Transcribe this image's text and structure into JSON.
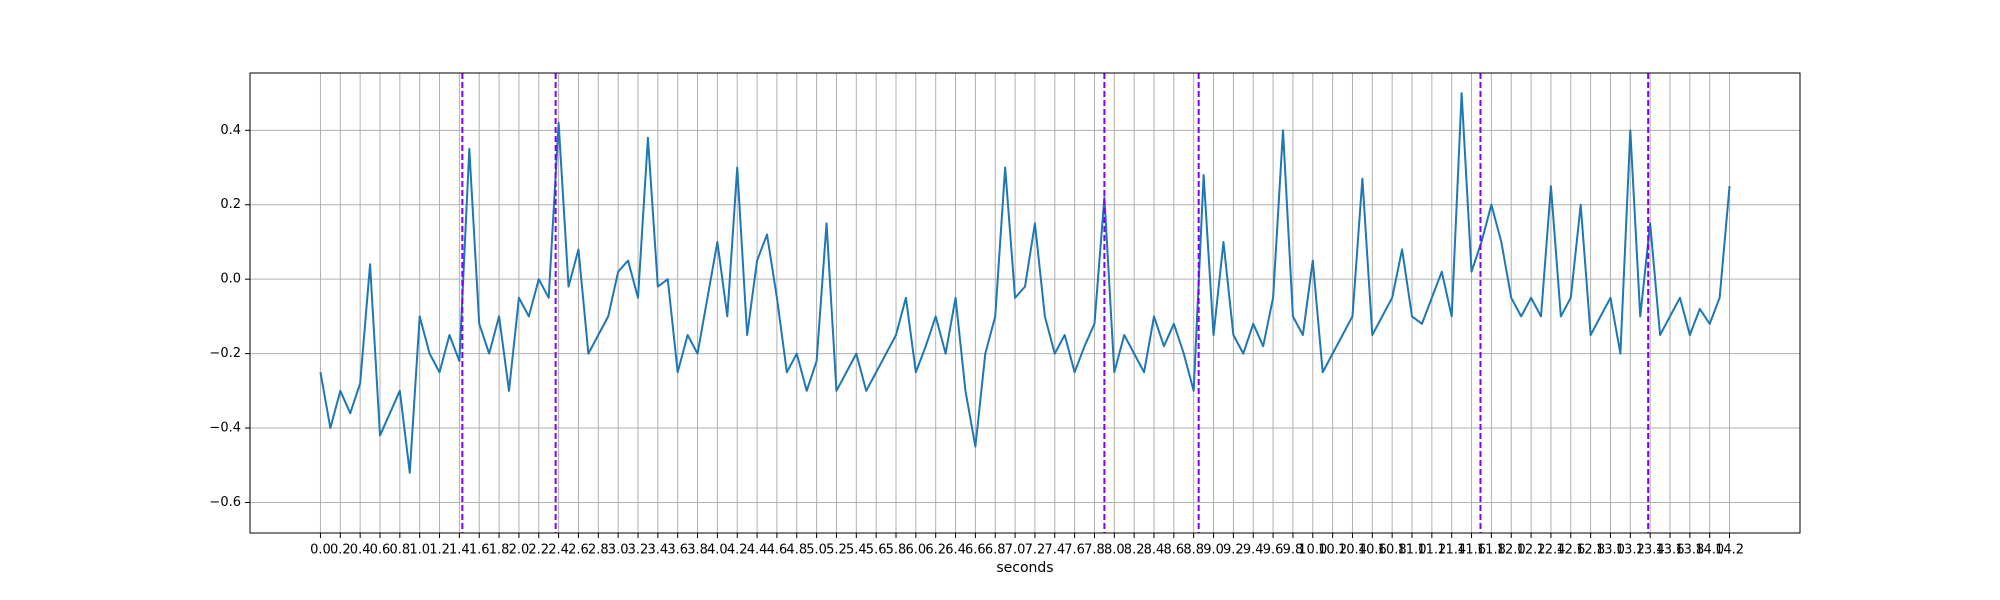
{
  "chart_data": {
    "type": "line",
    "xlabel": "seconds",
    "color": "#1f77b4",
    "vline_color": "#7f00ff",
    "grid": true,
    "xlim": [
      -0.71,
      14.91
    ],
    "ylim": [
      -0.682,
      0.554
    ],
    "xticks": [
      {
        "value": 0,
        "label": "0.0"
      },
      0.2,
      0.4,
      0.6,
      0.8,
      {
        "value": 1,
        "label": "1.0"
      },
      1.2,
      1.4,
      1.6,
      1.8,
      {
        "value": 2,
        "label": "2.0"
      },
      2.2,
      2.4,
      2.6,
      2.8,
      {
        "value": 3,
        "label": "3.0"
      },
      3.2,
      3.4,
      3.6,
      3.8,
      {
        "value": 4,
        "label": "4.0"
      },
      4.2,
      4.4,
      4.6,
      4.8,
      {
        "value": 5,
        "label": "5.0"
      },
      5.2,
      5.4,
      5.6,
      5.8,
      {
        "value": 6,
        "label": "6.0"
      },
      6.2,
      6.4,
      6.6,
      6.8,
      {
        "value": 7,
        "label": "7.0"
      },
      7.2,
      7.4,
      7.6,
      7.8,
      {
        "value": 8,
        "label": "8.0"
      },
      8.2,
      8.4,
      8.6,
      8.8,
      {
        "value": 9,
        "label": "9.0"
      },
      9.2,
      9.4,
      9.6,
      9.8,
      {
        "value": 10,
        "label": "10.0"
      },
      10.2,
      10.4,
      10.6,
      10.8,
      {
        "value": 11,
        "label": "11.0"
      },
      11.2,
      11.4,
      11.6,
      11.8,
      {
        "value": 12,
        "label": "12.0"
      },
      12.2,
      12.4,
      12.6,
      12.8,
      {
        "value": 13,
        "label": "13.0"
      },
      13.2,
      13.4,
      13.6,
      13.8,
      {
        "value": 14,
        "label": "14.0"
      },
      14.2
    ],
    "yticks": [
      {
        "value": -0.6,
        "label": "−0.6"
      },
      {
        "value": -0.4,
        "label": "−0.4"
      },
      {
        "value": -0.2,
        "label": "−0.2"
      },
      {
        "value": 0,
        "label": "0.0"
      },
      0.2,
      0.4
    ],
    "vlines": [
      1.43,
      2.37,
      7.9,
      8.85,
      11.69,
      13.38
    ],
    "x": [
      0,
      0.1,
      0.2,
      0.3,
      0.4,
      0.5,
      0.6,
      0.7,
      0.8,
      0.9,
      1,
      1.1,
      1.2,
      1.3,
      1.4,
      1.5,
      1.6,
      1.7,
      1.8,
      1.9,
      2,
      2.1,
      2.2,
      2.3,
      2.4,
      2.5,
      2.6,
      2.7,
      2.8,
      2.9,
      3,
      3.1,
      3.2,
      3.3,
      3.4,
      3.5,
      3.6,
      3.7,
      3.8,
      3.9,
      4,
      4.1,
      4.2,
      4.3,
      4.4,
      4.5,
      4.6,
      4.7,
      4.8,
      4.9,
      5,
      5.1,
      5.2,
      5.3,
      5.4,
      5.5,
      5.6,
      5.7,
      5.8,
      5.9,
      6,
      6.1,
      6.2,
      6.3,
      6.4,
      6.5,
      6.6,
      6.7,
      6.8,
      6.9,
      7,
      7.1,
      7.2,
      7.3,
      7.4,
      7.5,
      7.6,
      7.7,
      7.8,
      7.9,
      8,
      8.1,
      8.2,
      8.3,
      8.4,
      8.5,
      8.6,
      8.7,
      8.8,
      8.9,
      9,
      9.1,
      9.2,
      9.3,
      9.4,
      9.5,
      9.6,
      9.7,
      9.8,
      9.9,
      10,
      10.1,
      10.2,
      10.3,
      10.4,
      10.5,
      10.6,
      10.7,
      10.8,
      10.9,
      11,
      11.1,
      11.2,
      11.3,
      11.4,
      11.5,
      11.6,
      11.7,
      11.8,
      11.9,
      12,
      12.1,
      12.2,
      12.3,
      12.4,
      12.5,
      12.6,
      12.7,
      12.8,
      12.9,
      13,
      13.1,
      13.2,
      13.3,
      13.4,
      13.5,
      13.6,
      13.7,
      13.8,
      13.9,
      14,
      14.1,
      14.2
    ],
    "values": [
      -0.25,
      -0.4,
      -0.3,
      -0.36,
      -0.28,
      0.04,
      -0.42,
      -0.36,
      -0.3,
      -0.52,
      -0.1,
      -0.2,
      -0.25,
      -0.15,
      -0.22,
      0.35,
      -0.12,
      -0.2,
      -0.1,
      -0.3,
      -0.05,
      -0.1,
      0,
      -0.05,
      0.42,
      -0.02,
      0.08,
      -0.2,
      -0.15,
      -0.1,
      0.02,
      0.05,
      -0.05,
      0.38,
      -0.02,
      0,
      -0.25,
      -0.15,
      -0.2,
      -0.05,
      0.1,
      -0.1,
      0.3,
      -0.15,
      0.05,
      0.12,
      -0.05,
      -0.25,
      -0.2,
      -0.3,
      -0.22,
      0.15,
      -0.3,
      -0.25,
      -0.2,
      -0.3,
      -0.25,
      -0.2,
      -0.15,
      -0.05,
      -0.25,
      -0.18,
      -0.1,
      -0.2,
      -0.05,
      -0.3,
      -0.45,
      -0.2,
      -0.1,
      0.3,
      -0.05,
      -0.02,
      0.15,
      -0.1,
      -0.2,
      -0.15,
      -0.25,
      -0.18,
      -0.12,
      0.22,
      -0.25,
      -0.15,
      -0.2,
      -0.25,
      -0.1,
      -0.18,
      -0.12,
      -0.2,
      -0.3,
      0.28,
      -0.15,
      0.1,
      -0.15,
      -0.2,
      -0.12,
      -0.18,
      -0.05,
      0.4,
      -0.1,
      -0.15,
      0.05,
      -0.25,
      -0.2,
      -0.15,
      -0.1,
      0.27,
      -0.15,
      -0.1,
      -0.05,
      0.08,
      -0.1,
      -0.12,
      -0.05,
      0.02,
      -0.1,
      0.5,
      0.02,
      0.1,
      0.2,
      0.1,
      -0.05,
      -0.1,
      -0.05,
      -0.1,
      0.25,
      -0.1,
      -0.05,
      0.2,
      -0.15,
      -0.1,
      -0.05,
      -0.2,
      0.4,
      -0.1,
      0.15,
      -0.15,
      -0.1,
      -0.05,
      -0.15,
      -0.08,
      -0.12,
      -0.05,
      0.25
    ]
  }
}
